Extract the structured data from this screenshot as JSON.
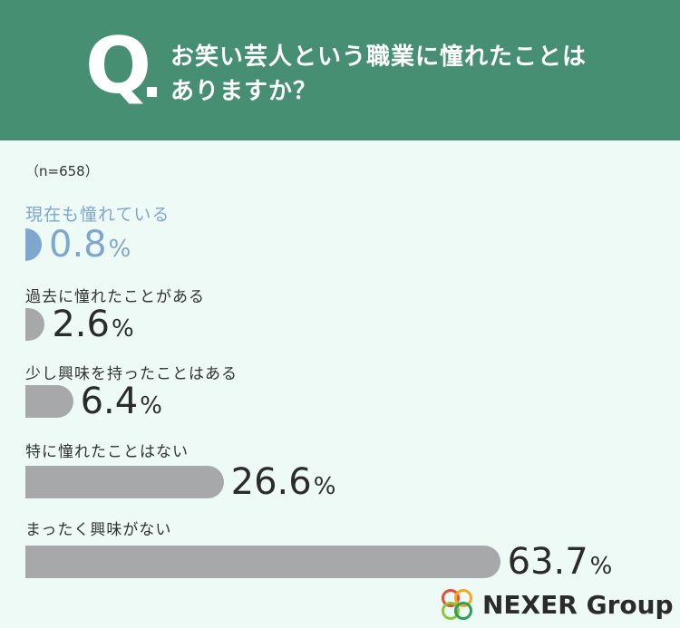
{
  "question": {
    "mark": "Q",
    "line1": "お笑い芸人という職業に憧れたことは",
    "line2": "ありますか？"
  },
  "sample": "（n=658）",
  "chart_data": {
    "type": "bar",
    "orientation": "horizontal",
    "unit": "%",
    "categories": [
      "現在も憧れている",
      "過去に憧れたことがある",
      "少し興味を持ったことはある",
      "特に憧れたことはない",
      "まったく興味がない"
    ],
    "values": [
      0.8,
      2.6,
      6.4,
      26.6,
      63.7
    ],
    "highlight_index": 0,
    "highlight_color": "#7fa6cf",
    "bar_color": "#a7a8aa"
  },
  "brand": {
    "name": "NEXER Group",
    "logo_colors": [
      "#e94b35",
      "#f5a623",
      "#8cc63f",
      "#2e9e5b"
    ]
  },
  "colors": {
    "header": "#468f73",
    "background": "#eefaf6"
  }
}
